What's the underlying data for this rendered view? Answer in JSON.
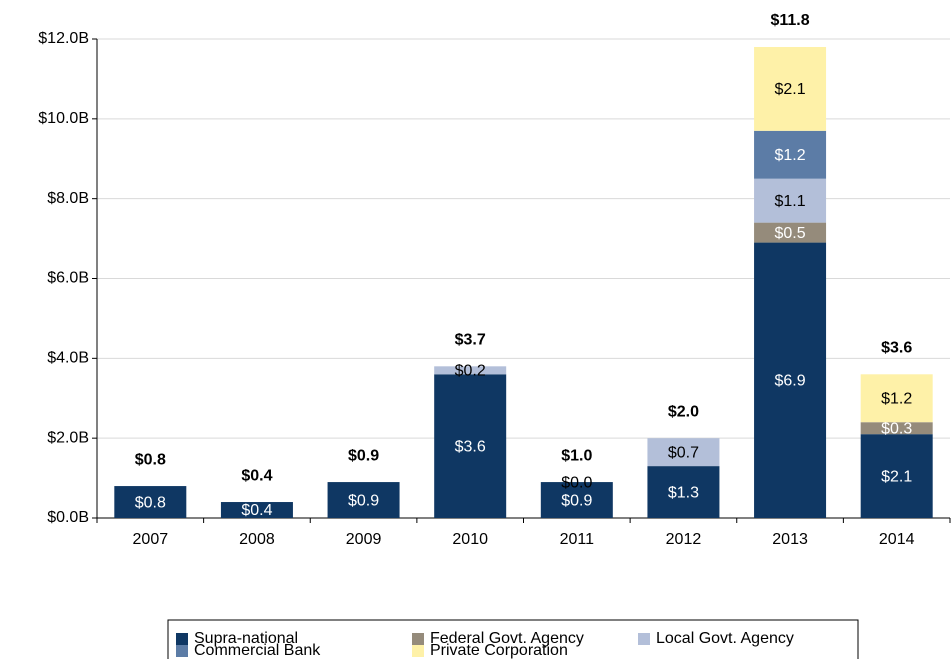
{
  "chart_data": {
    "type": "stacked_bar",
    "categories": [
      "2007",
      "2008",
      "2009",
      "2010",
      "2011",
      "2012",
      "2013",
      "2014"
    ],
    "series": [
      {
        "name": "Supra-national",
        "color": "#0f3763",
        "label_color": "#ffffff",
        "values": [
          0.8,
          0.4,
          0.9,
          3.6,
          0.9,
          1.3,
          6.9,
          2.1
        ],
        "value_labels": [
          "$0.8",
          "$0.4",
          "$0.9",
          "$3.6",
          "$0.9",
          "$1.3",
          "$6.9",
          "$2.1"
        ]
      },
      {
        "name": "Federal Govt. Agency",
        "color": "#958b7b",
        "label_color": "#ffffff",
        "values": [
          null,
          null,
          null,
          null,
          null,
          null,
          0.5,
          0.3
        ],
        "value_labels": [
          null,
          null,
          null,
          null,
          null,
          null,
          "$0.5",
          "$0.3"
        ]
      },
      {
        "name": "Local Govt. Agency",
        "color": "#b3bfd9",
        "label_color": "#000000",
        "values": [
          null,
          null,
          null,
          0.2,
          0.0,
          0.7,
          1.1,
          null
        ],
        "value_labels": [
          null,
          null,
          null,
          "$0.2",
          "$0.0",
          "$0.7",
          "$1.1",
          null
        ]
      },
      {
        "name": "Commercial Bank",
        "color": "#5c7ca6",
        "label_color": "#ffffff",
        "values": [
          null,
          null,
          null,
          null,
          null,
          null,
          1.2,
          null
        ],
        "value_labels": [
          null,
          null,
          null,
          null,
          null,
          null,
          "$1.2",
          null
        ]
      },
      {
        "name": "Private Corporation",
        "color": "#fef1a8",
        "label_color": "#000000",
        "values": [
          null,
          null,
          null,
          null,
          null,
          null,
          2.1,
          1.2
        ],
        "value_labels": [
          null,
          null,
          null,
          null,
          null,
          null,
          "$2.1",
          "$1.2"
        ]
      }
    ],
    "totals": [
      0.8,
      0.4,
      0.9,
      3.7,
      1.0,
      2.0,
      11.8,
      3.6
    ],
    "total_labels": [
      "$0.8",
      "$0.4",
      "$0.9",
      "$3.7",
      "$1.0",
      "$2.0",
      "$11.8",
      "$3.6"
    ],
    "ylim": [
      0,
      12
    ],
    "yticks": [
      {
        "value": 0,
        "label": "$0.0B"
      },
      {
        "value": 2,
        "label": "$2.0B"
      },
      {
        "value": 4,
        "label": "$4.0B"
      },
      {
        "value": 6,
        "label": "$6.0B"
      },
      {
        "value": 8,
        "label": "$8.0B"
      },
      {
        "value": 10,
        "label": "$10.0B"
      },
      {
        "value": 12,
        "label": "$12.0B"
      }
    ],
    "grid": true
  }
}
